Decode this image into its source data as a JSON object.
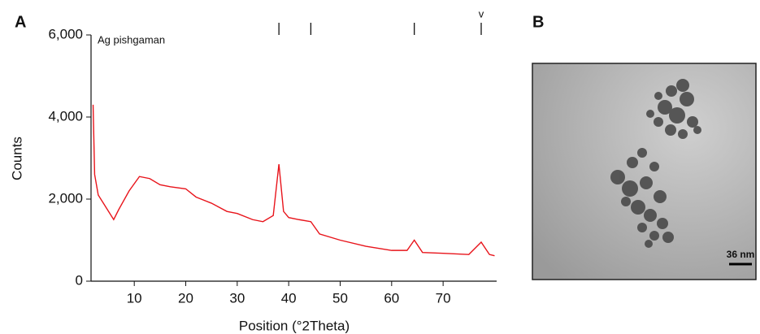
{
  "panel_a_label": "A",
  "chart_data": {
    "type": "line",
    "annotation": "Ag pishgaman",
    "x_label": "Position (°2Theta)",
    "y_label": "Counts",
    "x": [
      2,
      2.3,
      3,
      5,
      6,
      7,
      9,
      11,
      13,
      15,
      17,
      20,
      22,
      25,
      28,
      30,
      33,
      35,
      37,
      38.1,
      39,
      40,
      42,
      44.3,
      46,
      50,
      55,
      60,
      63,
      64.4,
      66,
      70,
      75,
      77.4,
      79,
      80
    ],
    "values": [
      4300,
      2600,
      2100,
      1700,
      1500,
      1750,
      2200,
      2550,
      2500,
      2350,
      2300,
      2250,
      2050,
      1900,
      1700,
      1650,
      1500,
      1450,
      1600,
      2850,
      1700,
      1550,
      1500,
      1450,
      1150,
      1000,
      850,
      750,
      750,
      1000,
      700,
      680,
      650,
      950,
      650,
      620
    ],
    "color": "#e8141b",
    "xlim": [
      1.6,
      80.4
    ],
    "ylim": [
      0,
      6000
    ],
    "xticks": [
      10,
      20,
      30,
      40,
      50,
      60,
      70
    ],
    "yticks": [
      0,
      {
        "value": 2000,
        "label": "2,000"
      },
      {
        "value": 4000,
        "label": "4,000"
      },
      {
        "value": 6000,
        "label": "6,000"
      }
    ],
    "reference_peaks": [
      38.1,
      44.3,
      64.4,
      77.4
    ],
    "reference_peak_label": "v"
  },
  "panel_b": {
    "label": "B",
    "scale_bar": "36 nm"
  }
}
